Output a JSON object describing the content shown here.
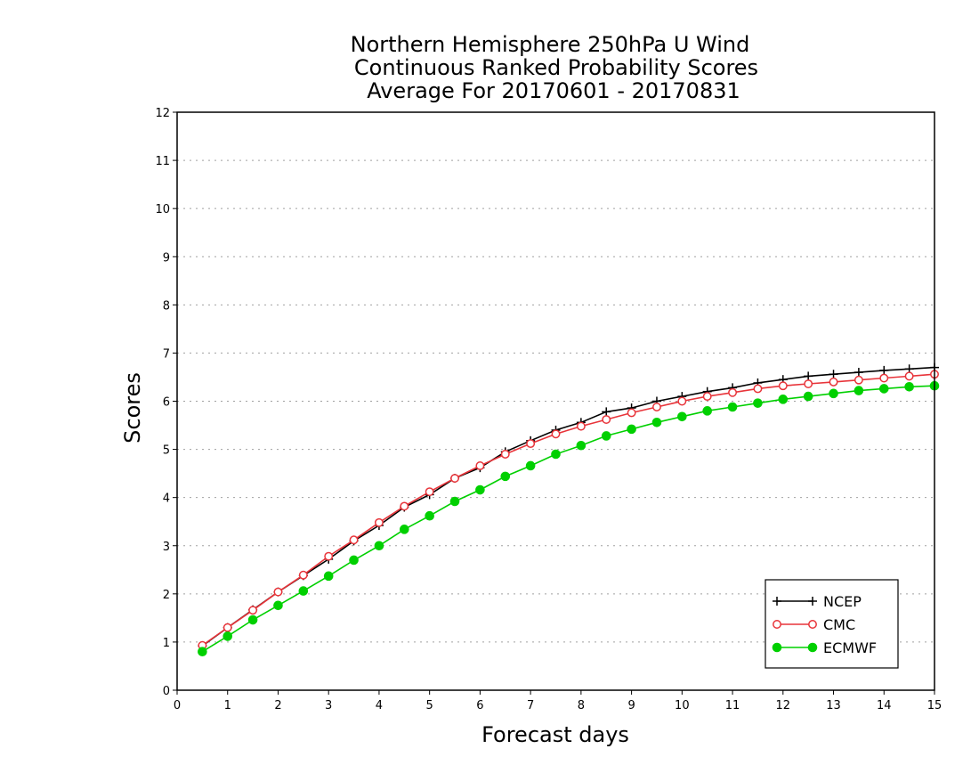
{
  "chart_data": {
    "type": "line",
    "title_lines": [
      "Northern Hemisphere 250hPa U Wind",
      "Continuous Ranked Probability Scores",
      "Average For 20170601 - 20170831"
    ],
    "xlabel": "Forecast days",
    "ylabel": "Scores",
    "xlim": [
      0,
      15
    ],
    "ylim": [
      0,
      12
    ],
    "xticks": [
      "0",
      "1",
      "2",
      "3",
      "4",
      "5",
      "6",
      "7",
      "8",
      "9",
      "10",
      "11",
      "12",
      "13",
      "14",
      "15"
    ],
    "yticks": [
      "0",
      "1",
      "2",
      "3",
      "4",
      "5",
      "6",
      "7",
      "8",
      "9",
      "10",
      "11",
      "12"
    ],
    "grid": "horizontal dotted",
    "legend_position": "lower-right",
    "x": [
      0.5,
      1,
      1.5,
      2,
      2.5,
      3,
      3.5,
      4,
      4.5,
      5,
      5.5,
      6,
      6.5,
      7,
      7.5,
      8,
      8.5,
      9,
      9.5,
      10,
      10.5,
      11,
      11.5,
      12,
      12.5,
      13,
      13.5,
      14,
      14.5,
      15
    ],
    "series": [
      {
        "name": "NCEP",
        "color": "#000000",
        "marker": "plus",
        "values": [
          0.92,
          1.3,
          1.67,
          2.04,
          2.38,
          2.72,
          3.1,
          3.42,
          3.8,
          4.06,
          4.4,
          4.62,
          4.95,
          5.18,
          5.4,
          5.56,
          5.78,
          5.86,
          6.0,
          6.1,
          6.2,
          6.28,
          6.38,
          6.45,
          6.52,
          6.56,
          6.6,
          6.64,
          6.67,
          6.7
        ]
      },
      {
        "name": "CMC",
        "color": "#e8343a",
        "marker": "open-circle",
        "values": [
          0.93,
          1.3,
          1.66,
          2.04,
          2.39,
          2.78,
          3.12,
          3.48,
          3.82,
          4.12,
          4.4,
          4.66,
          4.9,
          5.12,
          5.32,
          5.48,
          5.62,
          5.76,
          5.88,
          6.0,
          6.1,
          6.18,
          6.26,
          6.32,
          6.36,
          6.4,
          6.44,
          6.48,
          6.52,
          6.56
        ]
      },
      {
        "name": "ECMWF",
        "color": "#00d000",
        "marker": "filled-circle",
        "values": [
          0.8,
          1.12,
          1.46,
          1.76,
          2.06,
          2.37,
          2.7,
          3.0,
          3.34,
          3.62,
          3.92,
          4.16,
          4.44,
          4.66,
          4.9,
          5.08,
          5.28,
          5.42,
          5.56,
          5.68,
          5.8,
          5.88,
          5.96,
          6.04,
          6.1,
          6.16,
          6.22,
          6.26,
          6.3,
          6.32
        ]
      }
    ]
  }
}
